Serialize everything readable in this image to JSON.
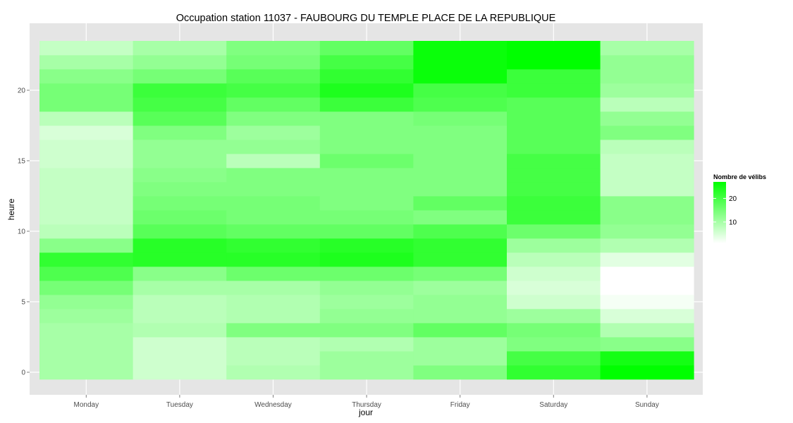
{
  "chart_data": {
    "type": "heatmap",
    "title": "Occupation station 11037 - FAUBOURG DU TEMPLE PLACE DE LA REPUBLIQUE",
    "xlabel": "jour",
    "ylabel": "heure",
    "x_categories": [
      "Monday",
      "Tuesday",
      "Wednesday",
      "Thursday",
      "Friday",
      "Saturday",
      "Sunday"
    ],
    "y_values": [
      0,
      1,
      2,
      3,
      4,
      5,
      6,
      7,
      8,
      9,
      10,
      11,
      12,
      13,
      14,
      15,
      16,
      17,
      18,
      19,
      20,
      21,
      22,
      23
    ],
    "y_ticks": [
      0,
      5,
      10,
      15,
      20
    ],
    "ylim": [
      -0.5,
      23.5
    ],
    "values": {
      "Monday": [
        10,
        10,
        10,
        10,
        11,
        12,
        15,
        19,
        22,
        13,
        8,
        7,
        7,
        7,
        7,
        6,
        6,
        5,
        8,
        15,
        15,
        13,
        10,
        7
      ],
      "Tuesday": [
        6,
        6,
        6,
        9,
        8,
        8,
        10,
        13,
        23,
        23,
        18,
        16,
        15,
        14,
        13,
        12,
        12,
        14,
        18,
        20,
        21,
        15,
        12,
        10
      ],
      "Wednesday": [
        9,
        8,
        8,
        14,
        9,
        9,
        10,
        16,
        23,
        22,
        17,
        15,
        15,
        14,
        14,
        8,
        12,
        11,
        14,
        17,
        20,
        18,
        15,
        14
      ],
      "Thursday": [
        11,
        11,
        9,
        14,
        12,
        11,
        12,
        16,
        24,
        23,
        17,
        15,
        14,
        14,
        14,
        16,
        14,
        14,
        14,
        21,
        24,
        22,
        20,
        17
      ],
      "Friday": [
        14,
        11,
        11,
        17,
        12,
        12,
        11,
        15,
        22,
        22,
        19,
        14,
        17,
        14,
        14,
        14,
        14,
        14,
        15,
        19,
        20,
        26,
        26,
        26
      ],
      "Saturday": [
        22,
        20,
        14,
        15,
        11,
        6,
        5,
        6,
        8,
        11,
        16,
        21,
        21,
        20,
        20,
        20,
        18,
        18,
        18,
        18,
        21,
        21,
        27,
        27
      ],
      "Sunday": [
        27,
        25,
        13,
        9,
        5,
        2,
        1,
        1,
        4,
        9,
        12,
        13,
        13,
        7,
        7,
        7,
        8,
        14,
        12,
        8,
        11,
        12,
        12,
        10
      ]
    },
    "color_scale": {
      "low": "#ffffff",
      "high": "#00ff00",
      "min": 1,
      "max": 27
    },
    "legend": {
      "title": "Nombre de vélibs",
      "breaks": [
        10,
        20
      ],
      "position": "right"
    },
    "panel_background": "#e5e5e5",
    "grid": true
  }
}
